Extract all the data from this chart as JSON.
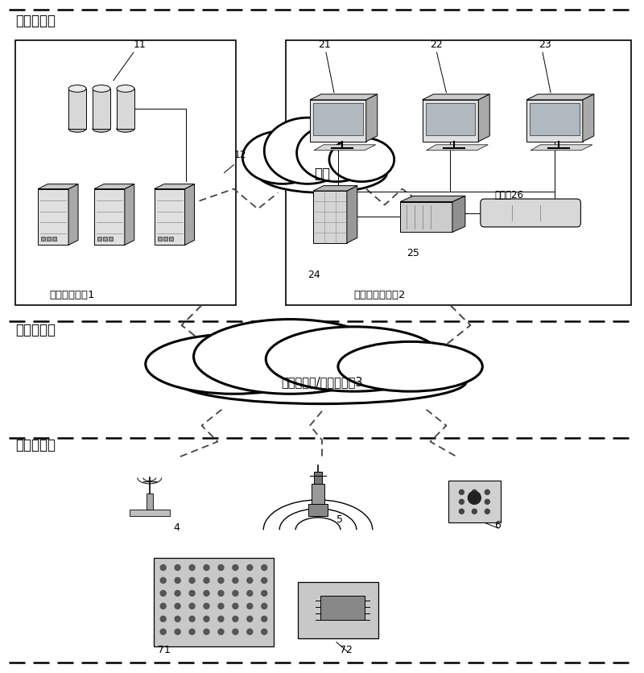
{
  "bg_color": "#ffffff",
  "layer1_label": "数据应用层",
  "layer2_label": "数据传输层",
  "layer3_label": "数据采集层",
  "box1_label": "系统应用平台1",
  "box2_label": "客户端应用平台2",
  "cloud1_label": "网络",
  "cloud2_label": "无线通信和/或有线网络3",
  "eth_label": "以太的26",
  "label_11": "11",
  "label_12": "12",
  "label_21": "21",
  "label_22": "22",
  "label_23": "23",
  "label_24": "24",
  "label_25": "25",
  "label_4": "4",
  "label_5": "5",
  "label_6": "6",
  "label_71": "71",
  "label_72": "72"
}
